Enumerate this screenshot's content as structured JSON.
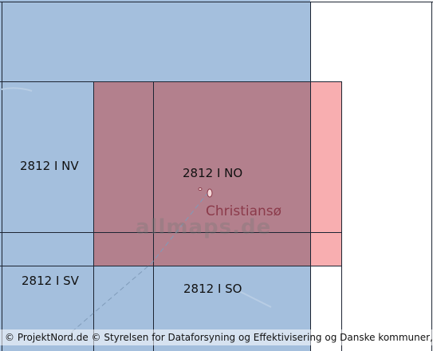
{
  "colors": {
    "sea": "#a4bfdd",
    "land": "#ffffff",
    "selection_fill_main": "#b3808d",
    "selection_fill_edge": "#f8aeb0",
    "selection_border": "#c2142e",
    "grid": "#1d2533",
    "place_label": "#8b3a4a"
  },
  "tiles": {
    "nv": "2812 I NV",
    "no": "2812 I NO",
    "sv": "2812 I SV",
    "so": "2812 I SO"
  },
  "place": {
    "name": "Christiansø"
  },
  "watermark": "allmaps.de",
  "attribution": "© ProjektNord.de © Styrelsen for Dataforsyning og Effektivisering og Danske kommuner, DK"
}
